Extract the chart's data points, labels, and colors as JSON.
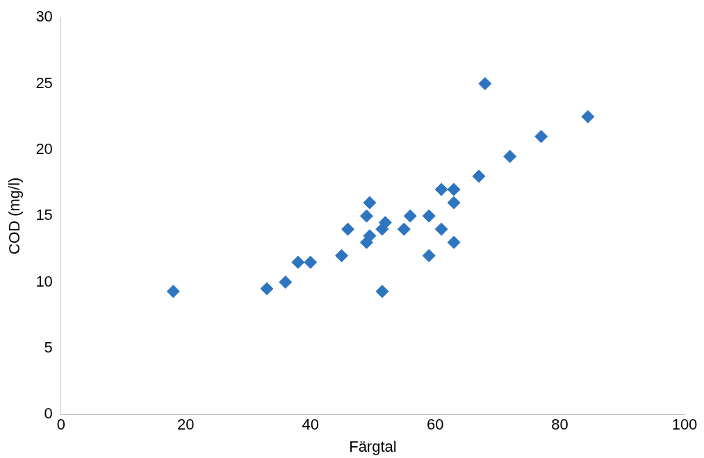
{
  "chart_data": {
    "type": "scatter",
    "xlabel": "Färgtal",
    "ylabel": "COD (mg/l)",
    "x": [
      18,
      33,
      36,
      38,
      40,
      45,
      46,
      49,
      49,
      49.5,
      49.5,
      51.5,
      51.5,
      52,
      55,
      56,
      59,
      59,
      61,
      61,
      63,
      63,
      63,
      67,
      68,
      72,
      77,
      84.5
    ],
    "values": [
      9.3,
      9.5,
      10,
      11.5,
      11.5,
      12,
      14,
      13,
      15,
      13.5,
      16,
      9.3,
      14,
      14.5,
      14,
      15,
      12,
      15,
      17,
      14,
      17,
      16,
      13,
      18,
      25,
      19.5,
      21,
      22.5
    ],
    "color": "#2e75c0",
    "marker": "diamond",
    "xlim": [
      0,
      100
    ],
    "xticks": [
      0,
      20,
      40,
      60,
      80,
      100
    ],
    "ylim": [
      0,
      30
    ],
    "yticks": [
      0,
      5,
      10,
      15,
      20,
      25,
      30
    ],
    "grid": false,
    "legend": false
  }
}
